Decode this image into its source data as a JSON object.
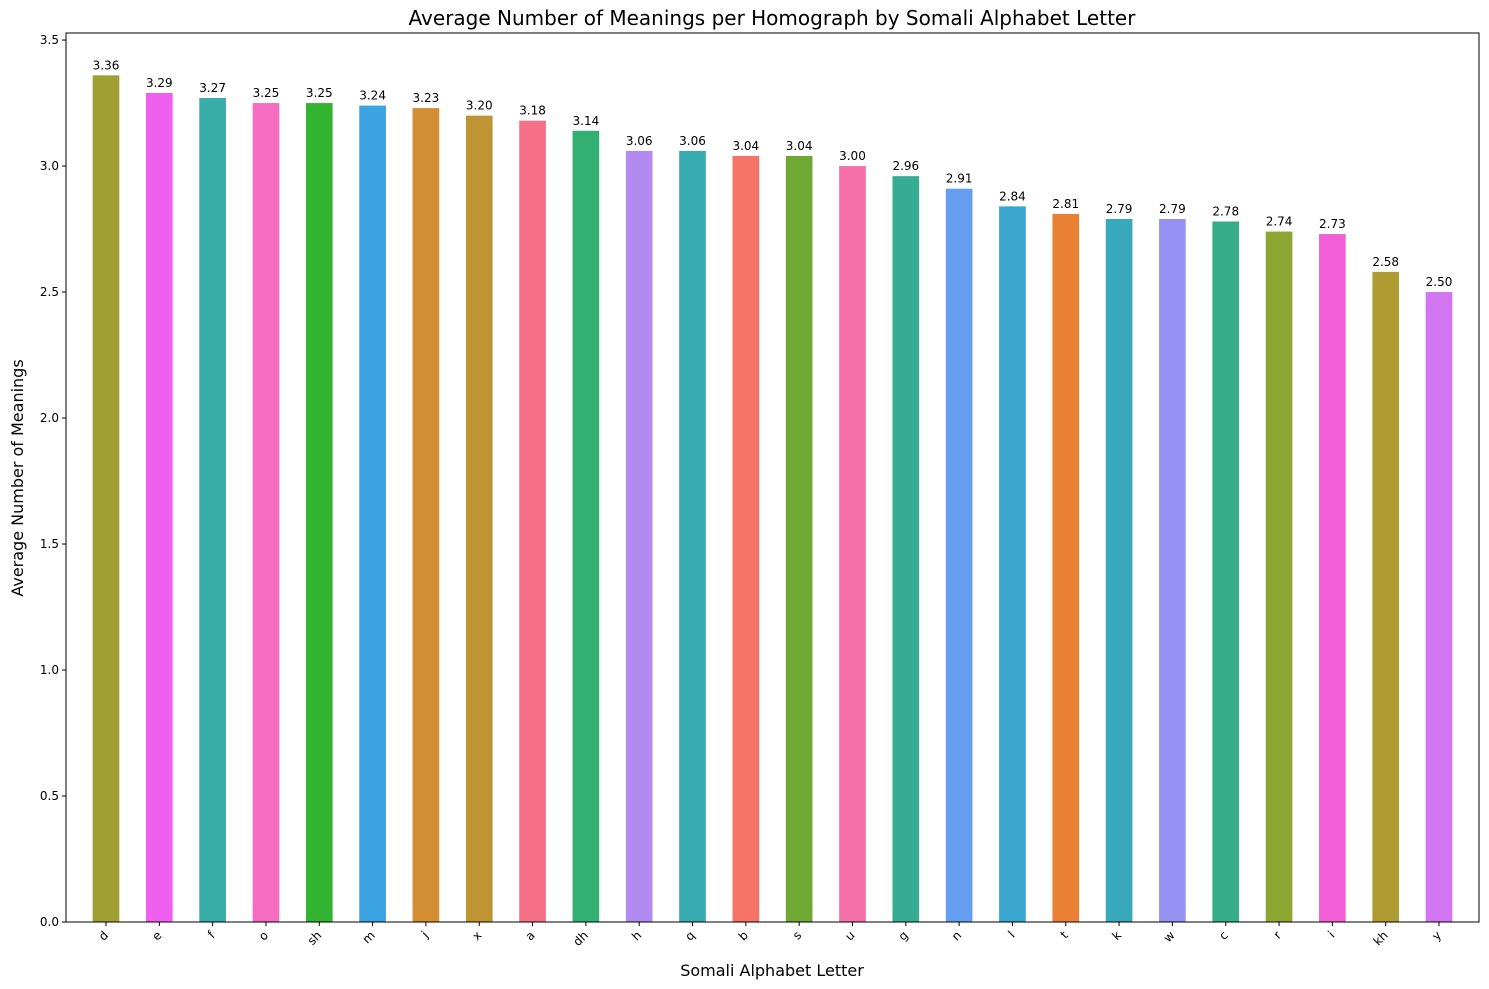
{
  "chart_data": {
    "type": "bar",
    "title": "Average Number of Meanings per Homograph by Somali Alphabet Letter",
    "xlabel": "Somali Alphabet Letter",
    "ylabel": "Average Number of Meanings",
    "ylim": [
      0,
      3.528
    ],
    "yticks": [
      "0.0",
      "0.5",
      "1.0",
      "1.5",
      "2.0",
      "2.5",
      "3.0",
      "3.5"
    ],
    "grid": false,
    "categories": [
      "d",
      "e",
      "f",
      "o",
      "sh",
      "m",
      "j",
      "x",
      "a",
      "dh",
      "h",
      "q",
      "b",
      "s",
      "u",
      "g",
      "n",
      "l",
      "t",
      "k",
      "w",
      "c",
      "r",
      "i",
      "kh",
      "y"
    ],
    "values": [
      3.36,
      3.29,
      3.27,
      3.25,
      3.25,
      3.24,
      3.23,
      3.2,
      3.18,
      3.14,
      3.06,
      3.06,
      3.04,
      3.04,
      3.0,
      2.96,
      2.91,
      2.84,
      2.81,
      2.79,
      2.79,
      2.78,
      2.74,
      2.73,
      2.58,
      2.5
    ],
    "value_labels": [
      "3.36",
      "3.29",
      "3.27",
      "3.25",
      "3.25",
      "3.24",
      "3.23",
      "3.20",
      "3.18",
      "3.14",
      "3.06",
      "3.06",
      "3.04",
      "3.04",
      "3.00",
      "2.96",
      "2.91",
      "2.84",
      "2.81",
      "2.79",
      "2.79",
      "2.78",
      "2.74",
      "2.73",
      "2.58",
      "2.50"
    ],
    "colors": [
      "#a0a032",
      "#f060f0",
      "#38ada8",
      "#f56cc0",
      "#32b432",
      "#3ca3e3",
      "#d38d33",
      "#bf9432",
      "#f57086",
      "#32b071",
      "#b38af0",
      "#37abb0",
      "#f57467",
      "#6fa832",
      "#f56fa8",
      "#36ad93",
      "#659ef0",
      "#3aa6cd",
      "#ea8034",
      "#38a8bc",
      "#9592f3",
      "#34ad88",
      "#8da632",
      "#f35fd8",
      "#ae9c32",
      "#d275f0"
    ]
  }
}
